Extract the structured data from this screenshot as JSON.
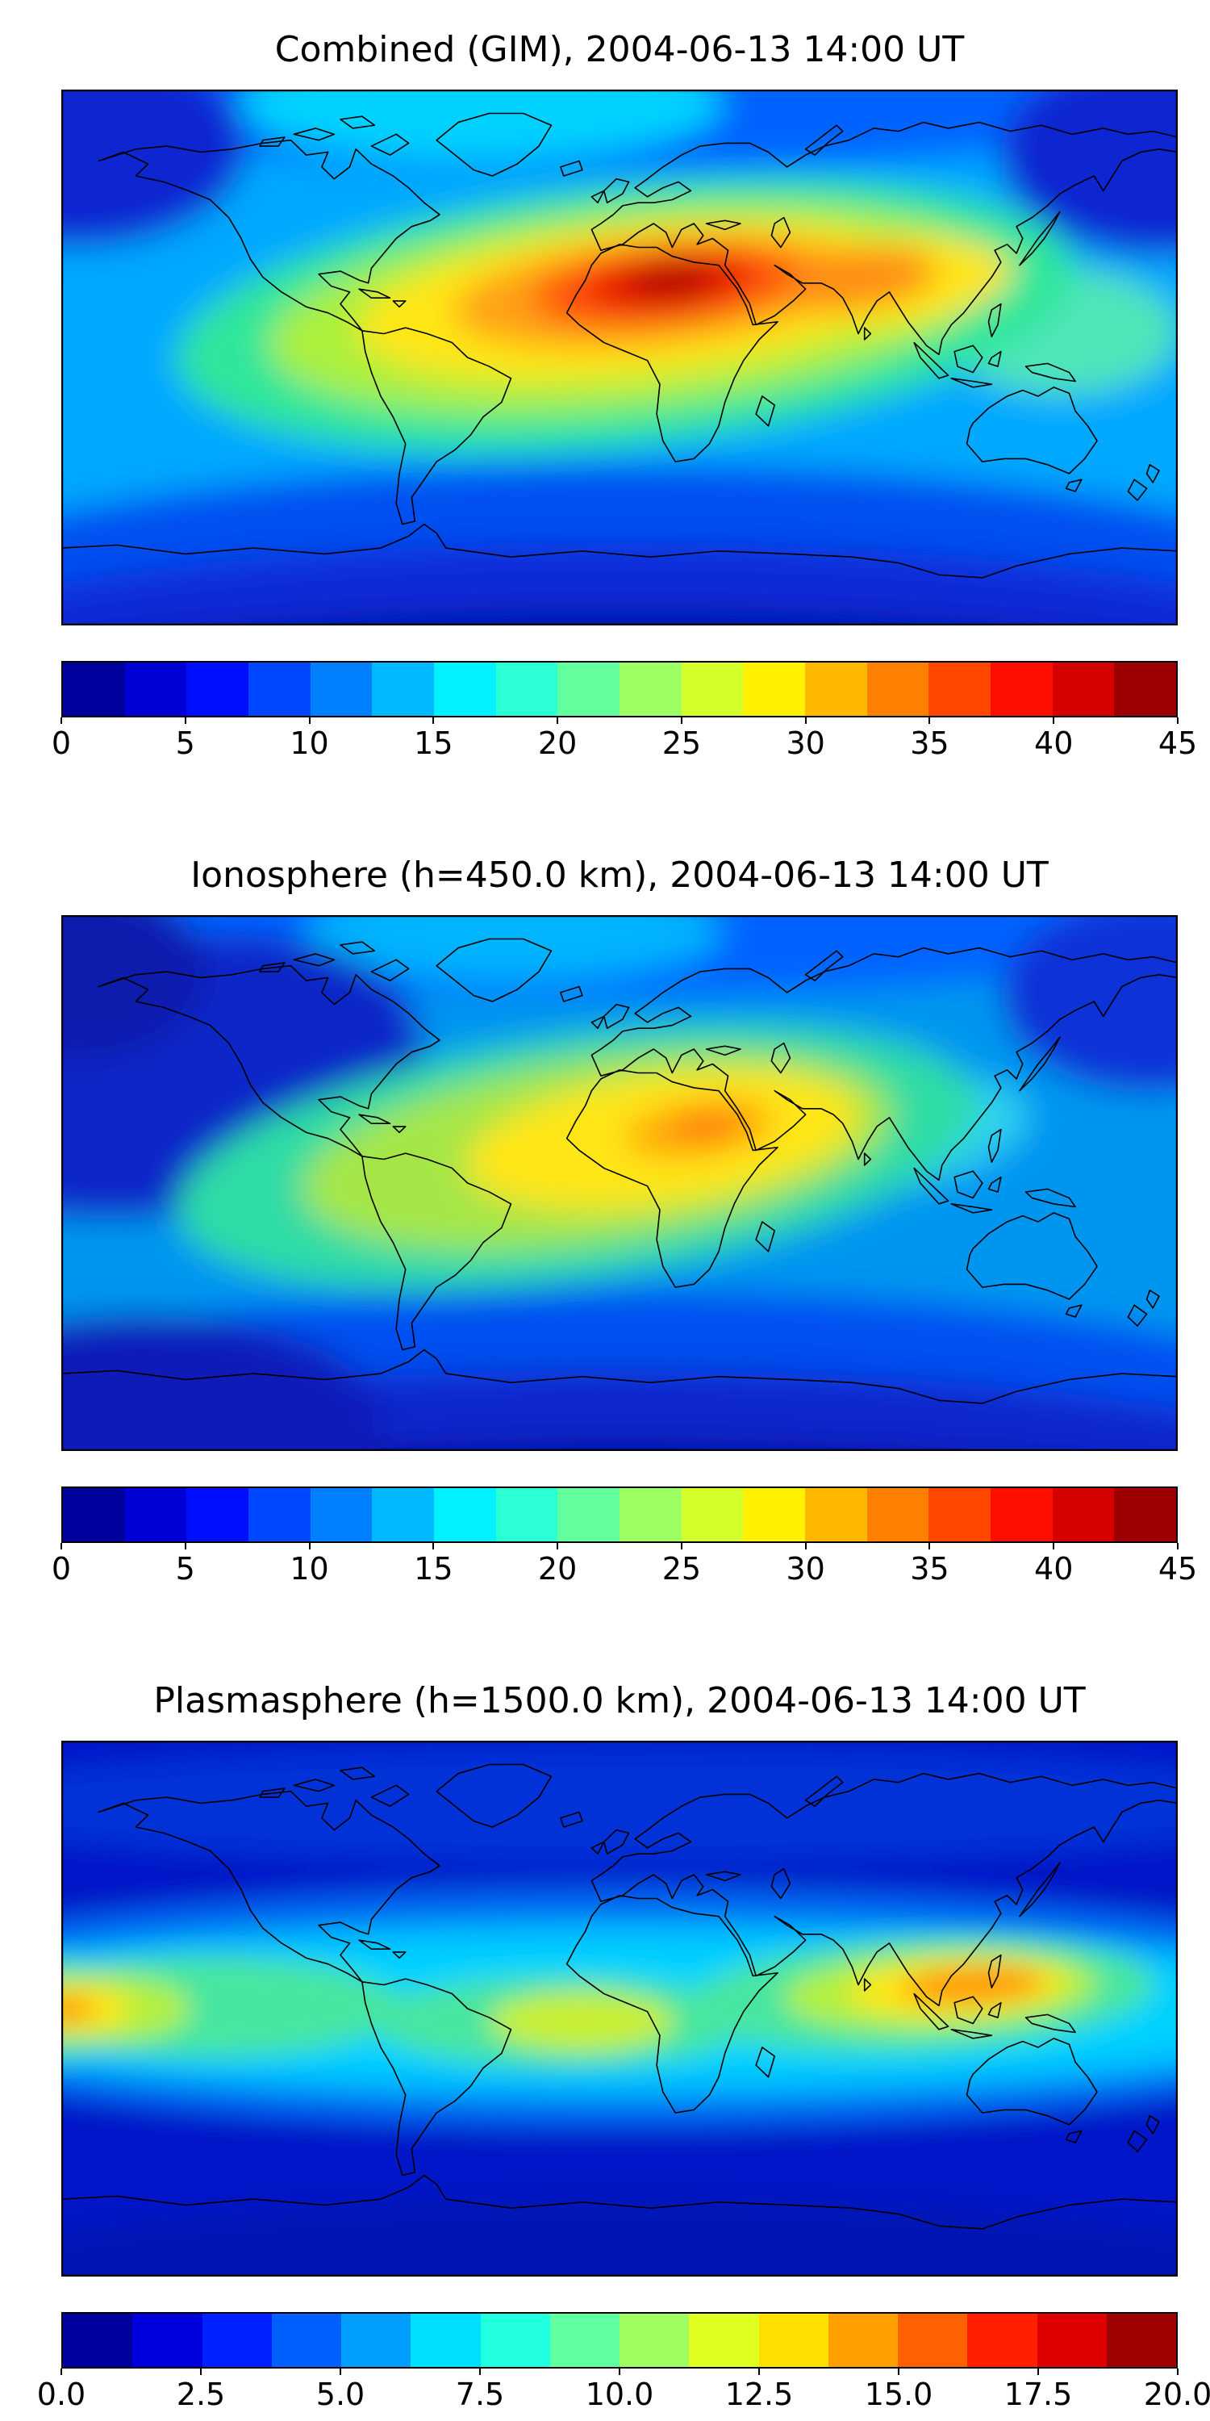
{
  "figure": {
    "background": "#ffffff",
    "text_color": "#000000",
    "colormap": "jet"
  },
  "panels": [
    {
      "title": "Combined (GIM), 2004-06-13 14:00 UT",
      "colorbar": {
        "vmin": 0,
        "vmax": 45,
        "segments": 18,
        "tick_values": [
          0,
          5,
          10,
          15,
          20,
          25,
          30,
          35,
          40,
          45
        ],
        "tick_labels": [
          "0",
          "5",
          "10",
          "15",
          "20",
          "25",
          "30",
          "35",
          "40",
          "45"
        ]
      },
      "map": {
        "base_color": "#00a8ff",
        "blur": 20,
        "blobs": [
          [
            692,
            -50,
            880,
            150,
            "#0064ff",
            0
          ],
          [
            520,
            18,
            300,
            70,
            "#00d2ff",
            0
          ],
          [
            20,
            70,
            210,
            125,
            "#0a28d2",
            0
          ],
          [
            1364,
            80,
            200,
            125,
            "#0a28d2",
            0
          ],
          [
            692,
            700,
            1050,
            235,
            "#0050f0",
            0
          ],
          [
            692,
            762,
            1050,
            200,
            "#0b2cd8",
            0
          ],
          [
            692,
            812,
            1050,
            168,
            "#0014aa",
            0
          ],
          [
            1240,
            300,
            145,
            78,
            "#50e6b9",
            0
          ],
          [
            700,
            280,
            560,
            160,
            "#2ee69b",
            -6
          ],
          [
            705,
            272,
            450,
            122,
            "#aaf03c",
            -6
          ],
          [
            715,
            262,
            350,
            92,
            "#ffe619",
            -6
          ],
          [
            1010,
            240,
            170,
            55,
            "#ffe619",
            -6
          ],
          [
            735,
            250,
            250,
            66,
            "#ffa019",
            -6
          ],
          [
            975,
            235,
            112,
            38,
            "#ff8c19",
            -6
          ],
          [
            748,
            243,
            165,
            48,
            "#ff500a",
            -6
          ],
          [
            753,
            239,
            105,
            34,
            "#e61900",
            -6
          ],
          [
            757,
            237,
            56,
            20,
            "#aa0000",
            -6
          ]
        ]
      }
    },
    {
      "title": "Ionosphere (h=450.0 km), 2004-06-13 14:00 UT",
      "colorbar": {
        "vmin": 0,
        "vmax": 45,
        "segments": 18,
        "tick_values": [
          0,
          5,
          10,
          15,
          20,
          25,
          30,
          35,
          40,
          45
        ],
        "tick_labels": [
          "0",
          "5",
          "10",
          "15",
          "20",
          "25",
          "30",
          "35",
          "40",
          "45"
        ]
      },
      "map": {
        "base_color": "#0096f0",
        "blur": 20,
        "blobs": [
          [
            692,
            -40,
            880,
            140,
            "#0064ff",
            0
          ],
          [
            560,
            22,
            260,
            60,
            "#00b4ff",
            0
          ],
          [
            130,
            200,
            320,
            170,
            "#0a28c8",
            -10
          ],
          [
            20,
            70,
            160,
            110,
            "#081ead",
            0
          ],
          [
            1350,
            100,
            185,
            120,
            "#0a32d7",
            0
          ],
          [
            692,
            690,
            1050,
            225,
            "#0050f0",
            0
          ],
          [
            692,
            758,
            1050,
            195,
            "#0b28cd",
            0
          ],
          [
            692,
            812,
            1050,
            158,
            "#000f9b",
            0
          ],
          [
            100,
            625,
            300,
            130,
            "#0a1eb9",
            0
          ],
          [
            1010,
            272,
            190,
            70,
            "#2ed2f0",
            -8
          ],
          [
            640,
            300,
            500,
            150,
            "#2edca5",
            -8
          ],
          [
            665,
            292,
            370,
            112,
            "#a5e646",
            -8
          ],
          [
            745,
            278,
            245,
            80,
            "#ffe619",
            -8
          ],
          [
            790,
            265,
            95,
            34,
            "#ffaa0f",
            -8
          ],
          [
            800,
            261,
            48,
            18,
            "#ff780a",
            -8
          ]
        ]
      }
    },
    {
      "title": "Plasmasphere (h=1500.0 km), 2004-06-13 14:00 UT",
      "colorbar": {
        "vmin": 0,
        "vmax": 20,
        "segments": 16,
        "tick_values": [
          0,
          2.5,
          5,
          7.5,
          10,
          12.5,
          15,
          17.5,
          20
        ],
        "tick_labels": [
          "0.0",
          "2.5",
          "5.0",
          "7.5",
          "10.0",
          "12.5",
          "15.0",
          "17.5",
          "20.0"
        ]
      },
      "map": {
        "base_color": "#0019c8",
        "blur": 16,
        "blobs": [
          [
            692,
            80,
            900,
            72,
            "#0032d7",
            0
          ],
          [
            692,
            330,
            1020,
            150,
            "#0064f0",
            0
          ],
          [
            692,
            333,
            960,
            112,
            "#00b9ff",
            0
          ],
          [
            692,
            333,
            880,
            80,
            "#00d2ff",
            0
          ],
          [
            175,
            330,
            250,
            62,
            "#46e6a0",
            0
          ],
          [
            620,
            348,
            235,
            56,
            "#46e6a0",
            0
          ],
          [
            1065,
            315,
            290,
            70,
            "#46e6a0",
            -3
          ],
          [
            -30,
            332,
            130,
            62,
            "#46e6a0",
            0
          ],
          [
            1090,
            310,
            195,
            48,
            "#b4f03c",
            -3
          ],
          [
            45,
            332,
            115,
            42,
            "#b4f03c",
            0
          ],
          [
            645,
            348,
            115,
            36,
            "#c8f032",
            0
          ],
          [
            1110,
            306,
            135,
            34,
            "#ffe619",
            -3
          ],
          [
            10,
            332,
            75,
            28,
            "#ffe619",
            0
          ],
          [
            1130,
            303,
            88,
            22,
            "#ff960f",
            -3
          ],
          [
            0,
            333,
            42,
            16,
            "#ff960f",
            0
          ],
          [
            692,
            735,
            1050,
            170,
            "#0014b4",
            0
          ]
        ]
      }
    }
  ],
  "chart_data": [
    {
      "type": "heatmap",
      "title": "Combined (GIM), 2004-06-13 14:00 UT",
      "colormap": "jet",
      "projection": "equirectangular world map with coastlines",
      "x_range_lon": [
        -180,
        180
      ],
      "y_range_lat": [
        -90,
        90
      ],
      "value_range": [
        0,
        45
      ],
      "contour_level_step": 2.5,
      "colorbar_ticks": [
        0,
        5,
        10,
        15,
        20,
        25,
        30,
        35,
        40,
        45
      ],
      "legend_position": "horizontal colorbar below map",
      "features": [
        {
          "name": "peak",
          "approx_lon": 17,
          "approx_lat": 18,
          "approx_value": 44,
          "region": "north-central Africa (Sahara)"
        },
        {
          "name": "warm-ridge",
          "approx_value_range": [
            25,
            40
          ],
          "description": "elongated enhancement from northern South America across Africa to Arabia and India"
        },
        {
          "name": "mid-latitude-background",
          "approx_value_range": [
            10,
            15
          ],
          "description": "cyan background over mid-latitude oceans"
        },
        {
          "name": "high-latitude-lows",
          "approx_value_range": [
            0,
            7.5
          ],
          "description": "dark blue bands at southern high latitudes and northern polar corners"
        }
      ]
    },
    {
      "type": "heatmap",
      "title": "Ionosphere (h=450.0 km), 2004-06-13 14:00 UT",
      "colormap": "jet",
      "projection": "equirectangular world map with coastlines",
      "x_range_lon": [
        -180,
        180
      ],
      "y_range_lat": [
        -90,
        90
      ],
      "value_range": [
        0,
        45
      ],
      "contour_level_step": 2.5,
      "colorbar_ticks": [
        0,
        5,
        10,
        15,
        20,
        25,
        30,
        35,
        40,
        45
      ],
      "legend_position": "horizontal colorbar below map",
      "features": [
        {
          "name": "peak",
          "approx_lon": 5,
          "approx_lat": 20,
          "approx_value": 33,
          "region": "west Sahara / Sahel"
        },
        {
          "name": "warm-region",
          "approx_value_range": [
            20,
            30
          ],
          "description": "green-yellow enhancement over the Atlantic, South America and Africa"
        },
        {
          "name": "north-pacific-low",
          "approx_value_range": [
            2.5,
            7.5
          ],
          "description": "large dark blue depletion over the North Pacific"
        },
        {
          "name": "southern-low-band",
          "approx_value_range": [
            0,
            5
          ],
          "description": "dark navy band south of 60S"
        }
      ]
    },
    {
      "type": "heatmap",
      "title": "Plasmasphere (h=1500.0 km), 2004-06-13 14:00 UT",
      "colormap": "jet",
      "projection": "equirectangular world map with coastlines",
      "x_range_lon": [
        -180,
        180
      ],
      "y_range_lat": [
        -90,
        90
      ],
      "value_range": [
        0,
        20
      ],
      "contour_level_step": 1.25,
      "colorbar_ticks": [
        0,
        2.5,
        5,
        7.5,
        10,
        12.5,
        15,
        17.5,
        20
      ],
      "legend_position": "horizontal colorbar below map",
      "features": [
        {
          "name": "peak-east",
          "approx_lon": 112,
          "approx_lat": 8,
          "approx_value": 16,
          "region": "Southeast Asia / western Pacific"
        },
        {
          "name": "peak-west-edge",
          "approx_lon": -178,
          "approx_lat": 0,
          "approx_value": 15,
          "region": "central Pacific near map edge (wraps around)"
        },
        {
          "name": "equatorial-band",
          "approx_value_range": [
            5,
            10
          ],
          "description": "cyan-green belt along low latitudes across all longitudes"
        },
        {
          "name": "polar-lows",
          "approx_value_range": [
            0,
            2.5
          ],
          "description": "dark blue at high northern and southern latitudes"
        }
      ]
    }
  ]
}
